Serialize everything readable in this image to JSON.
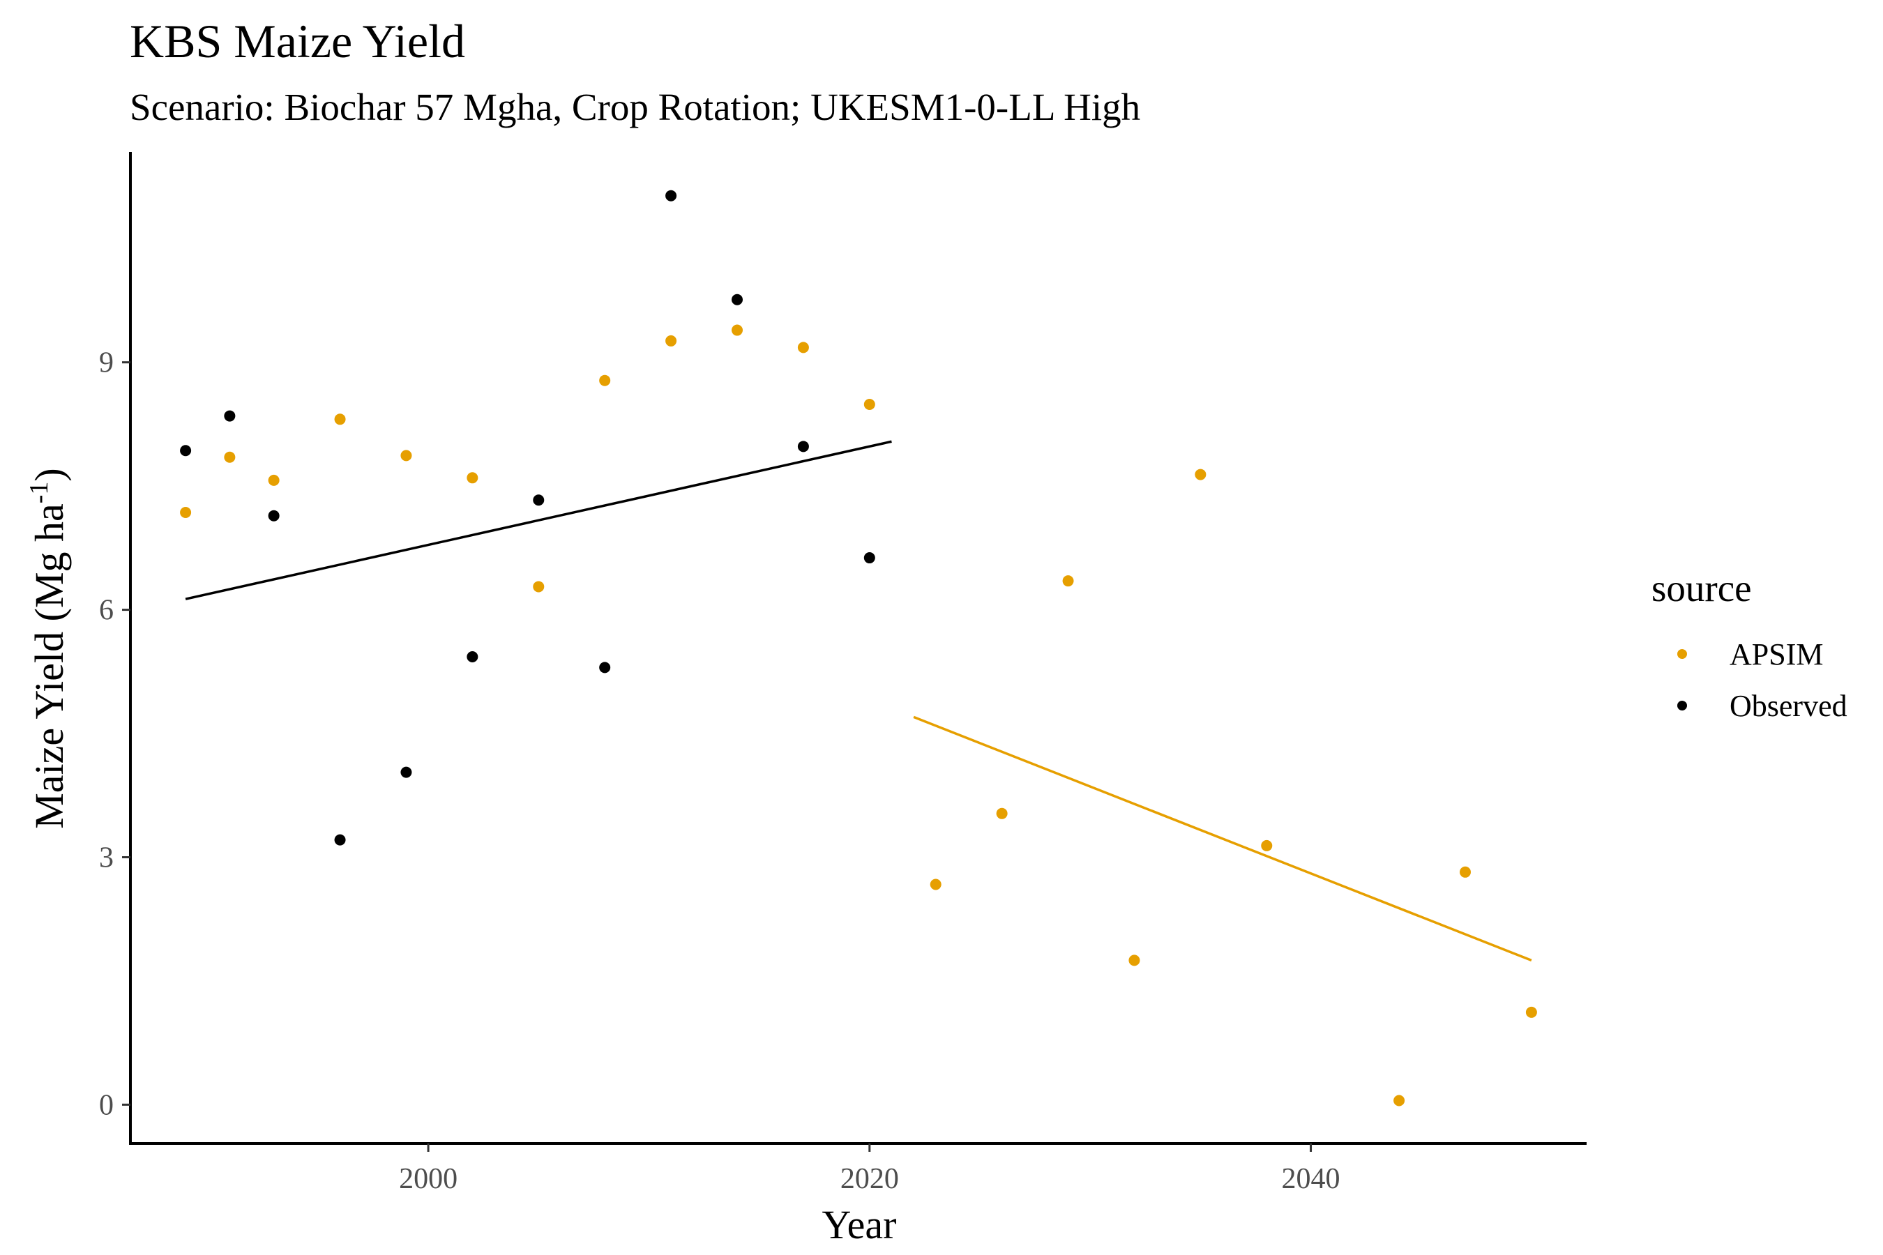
{
  "chart_data": {
    "type": "scatter",
    "title": "KBS Maize Yield",
    "subtitle": "Scenario: Biochar 57 Mgha, Crop Rotation; UKESM1-0-LL High",
    "xlabel": "Year",
    "ylabel": "Maize Yield (Mg ha",
    "ylabel_sup": "-1",
    "ylabel_close": ")",
    "xlim": [
      1986.5,
      2052.5
    ],
    "ylim": [
      -0.47,
      11.55
    ],
    "x_ticks": [
      2000,
      2020,
      2040
    ],
    "y_ticks": [
      0,
      3,
      6,
      9
    ],
    "grid": false,
    "legend": {
      "title": "source",
      "position": "right"
    },
    "series": [
      {
        "name": "APSIM",
        "color": "#E69F00",
        "points": [
          [
            1989,
            7.18
          ],
          [
            1991,
            7.85
          ],
          [
            1993,
            7.57
          ],
          [
            1996,
            8.31
          ],
          [
            1999,
            7.87
          ],
          [
            2002,
            7.6
          ],
          [
            2005,
            6.28
          ],
          [
            2008,
            8.78
          ],
          [
            2011,
            9.26
          ],
          [
            2014,
            9.39
          ],
          [
            2017,
            9.18
          ],
          [
            2020,
            8.49
          ],
          [
            2023,
            2.67
          ],
          [
            2026,
            3.53
          ],
          [
            2029,
            6.35
          ],
          [
            2032,
            1.75
          ],
          [
            2035,
            7.64
          ],
          [
            2038,
            3.14
          ],
          [
            2044,
            0.05
          ],
          [
            2047,
            2.82
          ],
          [
            2050,
            1.12
          ]
        ],
        "trend": {
          "x": [
            2022,
            2050
          ],
          "y": [
            4.7,
            1.75
          ]
        }
      },
      {
        "name": "Observed",
        "color": "#000000",
        "points": [
          [
            1989,
            7.93
          ],
          [
            1991,
            8.35
          ],
          [
            1993,
            7.14
          ],
          [
            1996,
            3.21
          ],
          [
            1999,
            4.03
          ],
          [
            2002,
            5.43
          ],
          [
            2005,
            7.33
          ],
          [
            2008,
            5.3
          ],
          [
            2011,
            11.02
          ],
          [
            2014,
            9.76
          ],
          [
            2017,
            7.98
          ],
          [
            2020,
            6.63
          ]
        ],
        "trend": {
          "x": [
            1989,
            2021
          ],
          "y": [
            6.13,
            8.04
          ]
        }
      }
    ]
  }
}
